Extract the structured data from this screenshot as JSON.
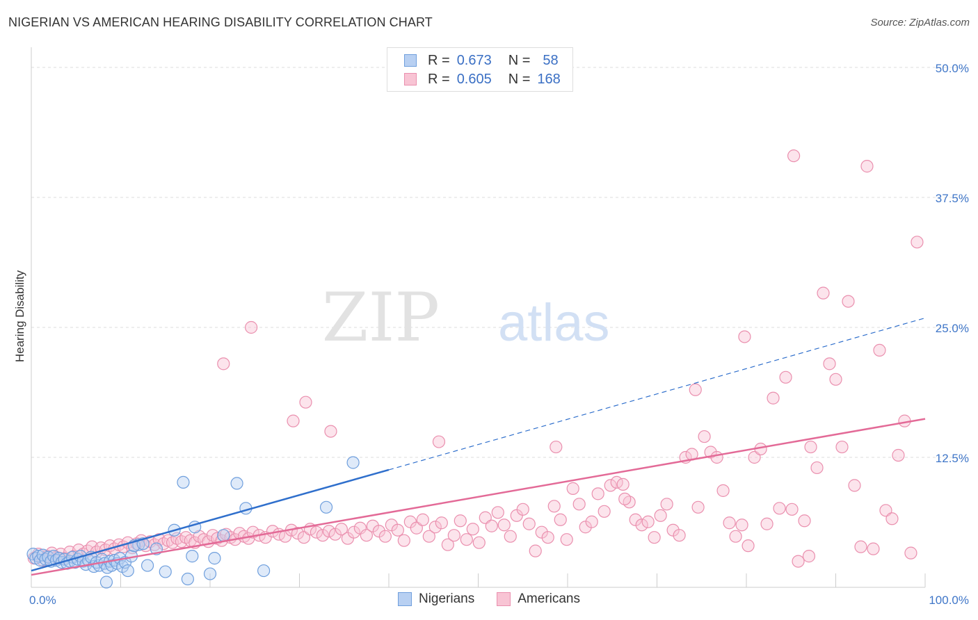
{
  "title": "NIGERIAN VS AMERICAN HEARING DISABILITY CORRELATION CHART",
  "source": "Source: ZipAtlas.com",
  "watermark": {
    "zip": "ZIP",
    "atlas": "atlas"
  },
  "legend": {
    "r_label": "R =",
    "n_label": "N =",
    "series": [
      {
        "name": "Nigerians",
        "r": "0.673",
        "n": "58",
        "fill": "#b8d0f2",
        "stroke": "#6f9fdd"
      },
      {
        "name": "Americans",
        "r": "0.605",
        "n": "168",
        "fill": "#f8c4d4",
        "stroke": "#ea8fae"
      }
    ]
  },
  "colors": {
    "blue_line": "#2f6fcc",
    "pink_line": "#e36a97",
    "tick_text": "#3f76c8",
    "grid": "#dddddd"
  },
  "chart_data": {
    "type": "scatter",
    "title": "NIGERIAN VS AMERICAN HEARING DISABILITY CORRELATION CHART",
    "xlabel": "",
    "ylabel": "Hearing Disability",
    "xlim": [
      0,
      100
    ],
    "ylim": [
      0,
      50
    ],
    "x_tick_labels": [
      "0.0%",
      "100.0%"
    ],
    "y_ticks": [
      12.5,
      25.0,
      37.5,
      50.0
    ],
    "y_tick_labels": [
      "12.5%",
      "25.0%",
      "37.5%",
      "50.0%"
    ],
    "series": [
      {
        "name": "Nigerians",
        "trend": {
          "x0": 0,
          "y0": 1.6,
          "x1": 40,
          "y1": 11.3,
          "dash_x1": 100,
          "dash_y1": 25.9
        },
        "points": [
          [
            0.2,
            3.2
          ],
          [
            0.5,
            2.8
          ],
          [
            0.8,
            3.0
          ],
          [
            1.0,
            2.6
          ],
          [
            1.3,
            3.1
          ],
          [
            1.6,
            2.7
          ],
          [
            1.9,
            2.9
          ],
          [
            2.2,
            2.5
          ],
          [
            2.5,
            3.0
          ],
          [
            2.8,
            2.6
          ],
          [
            3.1,
            2.8
          ],
          [
            3.4,
            2.4
          ],
          [
            3.7,
            2.7
          ],
          [
            4.0,
            2.3
          ],
          [
            4.3,
            2.5
          ],
          [
            4.6,
            2.9
          ],
          [
            4.9,
            2.4
          ],
          [
            5.2,
            2.7
          ],
          [
            5.5,
            3.0
          ],
          [
            5.8,
            2.5
          ],
          [
            6.1,
            2.2
          ],
          [
            6.4,
            2.6
          ],
          [
            6.7,
            2.9
          ],
          [
            7.0,
            2.0
          ],
          [
            7.3,
            2.4
          ],
          [
            7.6,
            2.1
          ],
          [
            7.9,
            2.7
          ],
          [
            8.2,
            2.3
          ],
          [
            8.5,
            1.9
          ],
          [
            8.8,
            2.5
          ],
          [
            9.0,
            2.1
          ],
          [
            9.3,
            2.6
          ],
          [
            9.6,
            2.3
          ],
          [
            9.9,
            2.8
          ],
          [
            10.2,
            2.0
          ],
          [
            10.5,
            2.4
          ],
          [
            10.8,
            1.6
          ],
          [
            11.2,
            3.0
          ],
          [
            12.0,
            4.1
          ],
          [
            13.0,
            2.1
          ],
          [
            14.0,
            3.7
          ],
          [
            15.0,
            1.5
          ],
          [
            16.0,
            5.5
          ],
          [
            17.0,
            10.1
          ],
          [
            17.5,
            0.8
          ],
          [
            18.0,
            3.0
          ],
          [
            18.3,
            5.8
          ],
          [
            20.0,
            1.3
          ],
          [
            20.5,
            2.8
          ],
          [
            21.5,
            5.0
          ],
          [
            23.0,
            10.0
          ],
          [
            24.0,
            7.6
          ],
          [
            26.0,
            1.6
          ],
          [
            33.0,
            7.7
          ],
          [
            36.0,
            12.0
          ],
          [
            8.4,
            0.5
          ],
          [
            11.5,
            4.0
          ],
          [
            12.5,
            4.2
          ]
        ]
      },
      {
        "name": "Americans",
        "trend": {
          "x0": 0,
          "y0": 1.2,
          "x1": 100,
          "y1": 16.2
        },
        "points": [
          [
            0.3,
            2.8
          ],
          [
            0.8,
            3.2
          ],
          [
            1.3,
            2.6
          ],
          [
            1.8,
            3.0
          ],
          [
            2.3,
            3.3
          ],
          [
            2.8,
            2.9
          ],
          [
            3.3,
            3.2
          ],
          [
            3.8,
            2.8
          ],
          [
            4.3,
            3.4
          ],
          [
            4.8,
            3.0
          ],
          [
            5.3,
            3.6
          ],
          [
            5.8,
            3.2
          ],
          [
            6.3,
            3.5
          ],
          [
            6.8,
            3.9
          ],
          [
            7.3,
            3.4
          ],
          [
            7.8,
            3.8
          ],
          [
            8.3,
            3.6
          ],
          [
            8.8,
            4.0
          ],
          [
            9.3,
            3.7
          ],
          [
            9.8,
            4.1
          ],
          [
            10.3,
            3.9
          ],
          [
            10.8,
            4.3
          ],
          [
            11.3,
            3.8
          ],
          [
            11.8,
            4.2
          ],
          [
            12.3,
            4.5
          ],
          [
            12.8,
            4.0
          ],
          [
            13.3,
            4.4
          ],
          [
            13.8,
            4.1
          ],
          [
            14.3,
            4.6
          ],
          [
            14.8,
            4.2
          ],
          [
            15.3,
            4.5
          ],
          [
            15.8,
            4.3
          ],
          [
            16.3,
            4.7
          ],
          [
            16.8,
            4.4
          ],
          [
            17.3,
            4.8
          ],
          [
            17.8,
            4.5
          ],
          [
            18.3,
            4.3
          ],
          [
            18.8,
            4.9
          ],
          [
            19.3,
            4.6
          ],
          [
            19.8,
            4.4
          ],
          [
            20.3,
            5.0
          ],
          [
            20.8,
            4.7
          ],
          [
            21.3,
            4.5
          ],
          [
            21.8,
            5.1
          ],
          [
            22.3,
            4.8
          ],
          [
            22.8,
            4.6
          ],
          [
            23.3,
            5.2
          ],
          [
            23.8,
            4.9
          ],
          [
            24.3,
            4.7
          ],
          [
            24.8,
            5.3
          ],
          [
            25.5,
            5.0
          ],
          [
            26.2,
            4.8
          ],
          [
            27.0,
            5.4
          ],
          [
            27.7,
            5.1
          ],
          [
            28.4,
            4.9
          ],
          [
            29.1,
            5.5
          ],
          [
            29.8,
            5.2
          ],
          [
            30.5,
            4.8
          ],
          [
            31.2,
            5.6
          ],
          [
            31.9,
            5.3
          ],
          [
            32.6,
            5.0
          ],
          [
            33.3,
            5.4
          ],
          [
            34.0,
            5.1
          ],
          [
            34.7,
            5.6
          ],
          [
            35.4,
            4.7
          ],
          [
            36.1,
            5.3
          ],
          [
            36.8,
            5.7
          ],
          [
            37.5,
            5.0
          ],
          [
            38.2,
            5.9
          ],
          [
            38.9,
            5.4
          ],
          [
            39.6,
            4.9
          ],
          [
            40.3,
            6.0
          ],
          [
            41.0,
            5.5
          ],
          [
            41.7,
            4.5
          ],
          [
            42.4,
            6.3
          ],
          [
            43.1,
            5.7
          ],
          [
            43.8,
            6.5
          ],
          [
            44.5,
            4.9
          ],
          [
            45.2,
            5.8
          ],
          [
            45.9,
            6.2
          ],
          [
            46.6,
            4.1
          ],
          [
            47.3,
            5.0
          ],
          [
            48.0,
            6.4
          ],
          [
            48.7,
            4.6
          ],
          [
            49.4,
            5.6
          ],
          [
            50.1,
            4.3
          ],
          [
            50.8,
            6.7
          ],
          [
            51.5,
            5.9
          ],
          [
            52.2,
            7.2
          ],
          [
            52.9,
            6.0
          ],
          [
            53.6,
            4.9
          ],
          [
            54.3,
            6.9
          ],
          [
            55.0,
            7.5
          ],
          [
            55.7,
            6.1
          ],
          [
            56.4,
            3.5
          ],
          [
            57.1,
            5.3
          ],
          [
            57.8,
            4.8
          ],
          [
            58.5,
            7.8
          ],
          [
            59.2,
            6.5
          ],
          [
            59.9,
            4.6
          ],
          [
            60.6,
            9.5
          ],
          [
            61.3,
            8.0
          ],
          [
            62.0,
            5.8
          ],
          [
            62.7,
            6.3
          ],
          [
            63.4,
            9.0
          ],
          [
            64.1,
            7.3
          ],
          [
            64.8,
            9.8
          ],
          [
            65.5,
            10.1
          ],
          [
            66.2,
            9.9
          ],
          [
            66.9,
            8.2
          ],
          [
            67.6,
            6.5
          ],
          [
            68.3,
            6.0
          ],
          [
            69.0,
            6.3
          ],
          [
            69.7,
            4.8
          ],
          [
            70.4,
            6.9
          ],
          [
            71.1,
            8.0
          ],
          [
            71.8,
            5.5
          ],
          [
            72.5,
            5.0
          ],
          [
            73.2,
            12.5
          ],
          [
            73.9,
            12.8
          ],
          [
            74.6,
            7.7
          ],
          [
            75.3,
            14.5
          ],
          [
            76.0,
            13.0
          ],
          [
            76.7,
            12.5
          ],
          [
            77.4,
            9.3
          ],
          [
            78.1,
            6.2
          ],
          [
            78.8,
            4.9
          ],
          [
            79.5,
            6.0
          ],
          [
            80.2,
            4.0
          ],
          [
            80.9,
            12.5
          ],
          [
            81.6,
            13.3
          ],
          [
            82.3,
            6.1
          ],
          [
            83.0,
            18.2
          ],
          [
            83.7,
            7.6
          ],
          [
            84.4,
            20.2
          ],
          [
            85.1,
            7.5
          ],
          [
            85.8,
            2.5
          ],
          [
            86.5,
            6.4
          ],
          [
            87.2,
            13.5
          ],
          [
            87.9,
            11.5
          ],
          [
            88.6,
            28.3
          ],
          [
            89.3,
            21.5
          ],
          [
            90.0,
            20.0
          ],
          [
            90.7,
            13.5
          ],
          [
            91.4,
            27.5
          ],
          [
            92.1,
            9.8
          ],
          [
            92.8,
            3.9
          ],
          [
            93.5,
            40.5
          ],
          [
            94.2,
            3.7
          ],
          [
            94.9,
            22.8
          ],
          [
            95.6,
            7.4
          ],
          [
            96.3,
            6.6
          ],
          [
            97.0,
            12.7
          ],
          [
            97.7,
            16.0
          ],
          [
            98.4,
            3.3
          ],
          [
            99.1,
            33.2
          ],
          [
            21.5,
            21.5
          ],
          [
            24.6,
            25.0
          ],
          [
            29.3,
            16.0
          ],
          [
            30.7,
            17.8
          ],
          [
            33.5,
            15.0
          ],
          [
            45.6,
            14.0
          ],
          [
            58.7,
            13.5
          ],
          [
            66.4,
            8.5
          ],
          [
            74.3,
            19.0
          ],
          [
            79.8,
            24.1
          ],
          [
            85.3,
            41.5
          ],
          [
            87.0,
            3.0
          ]
        ]
      }
    ]
  }
}
